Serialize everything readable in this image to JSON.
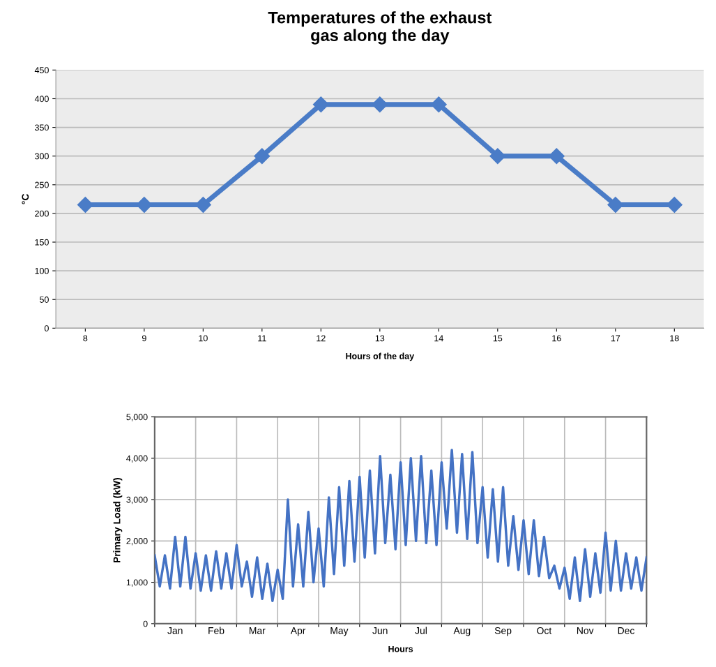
{
  "chart_data": [
    {
      "type": "line",
      "title": "Temperatures of the exhaust\ngas along the day",
      "xlabel": "Hours of the day",
      "ylabel": "°C",
      "categories": [
        "8",
        "9",
        "10",
        "11",
        "12",
        "13",
        "14",
        "15",
        "16",
        "17",
        "18"
      ],
      "series": [
        {
          "color": "#4a7cc7",
          "values": [
            215,
            215,
            215,
            300,
            390,
            390,
            390,
            300,
            300,
            215,
            215
          ]
        }
      ],
      "ylim": [
        0,
        450
      ],
      "yticks": [
        0,
        50,
        100,
        150,
        200,
        250,
        300,
        350,
        400,
        450
      ],
      "grid": "y",
      "marker": "diamond",
      "line_style": "solid",
      "legend": false
    },
    {
      "type": "line",
      "xlabel": "Hours",
      "ylabel": "Primary Load (kW)",
      "categories": [
        null,
        null,
        null,
        null,
        "Jan",
        null,
        null,
        null,
        null,
        null,
        null,
        null,
        "Feb",
        null,
        null,
        null,
        null,
        null,
        null,
        null,
        "Mar",
        null,
        null,
        null,
        null,
        null,
        null,
        null,
        "Apr",
        null,
        null,
        null,
        null,
        null,
        null,
        null,
        "May",
        null,
        null,
        null,
        null,
        null,
        null,
        null,
        "Jun",
        null,
        null,
        null,
        null,
        null,
        null,
        null,
        "Jul",
        null,
        null,
        null,
        null,
        null,
        null,
        null,
        "Aug",
        null,
        null,
        null,
        null,
        null,
        null,
        null,
        "Sep",
        null,
        null,
        null,
        null,
        null,
        null,
        null,
        "Oct",
        null,
        null,
        null,
        null,
        null,
        null,
        null,
        "Nov",
        null,
        null,
        null,
        null,
        null,
        null,
        null,
        "Dec",
        null,
        null,
        null,
        null
      ],
      "series": [
        {
          "color": "#4472c4",
          "values": [
            1650,
            900,
            1650,
            850,
            2100,
            900,
            2100,
            850,
            1700,
            800,
            1650,
            800,
            1750,
            850,
            1700,
            850,
            1900,
            900,
            1500,
            650,
            1600,
            600,
            1450,
            550,
            1300,
            600,
            3000,
            900,
            2400,
            900,
            2700,
            1000,
            2300,
            900,
            3050,
            1200,
            3300,
            1400,
            3450,
            1500,
            3550,
            1600,
            3700,
            1700,
            4050,
            1950,
            3600,
            1800,
            3900,
            1900,
            4000,
            2000,
            4050,
            1950,
            3700,
            1900,
            3900,
            2300,
            4200,
            2200,
            4100,
            2050,
            4150,
            1950,
            3300,
            1600,
            3250,
            1500,
            3300,
            1400,
            2600,
            1300,
            2500,
            1200,
            2500,
            1150,
            2100,
            1100,
            1400,
            850,
            1350,
            600,
            1600,
            550,
            1800,
            650,
            1700,
            750,
            2200,
            800,
            2000,
            800,
            1700,
            850,
            1600,
            800,
            1600
          ]
        }
      ],
      "ylim": [
        0,
        5000
      ],
      "yticks": [
        {
          "value": 0,
          "label": "0"
        },
        {
          "value": 1000,
          "label": "1,000"
        },
        {
          "value": 2000,
          "label": "2,000"
        },
        {
          "value": 3000,
          "label": "3,000"
        },
        {
          "value": 4000,
          "label": "4,000"
        },
        {
          "value": 5000,
          "label": "5,000"
        }
      ],
      "grid": true,
      "marker": "none",
      "line_style": "solid",
      "legend": false
    }
  ]
}
